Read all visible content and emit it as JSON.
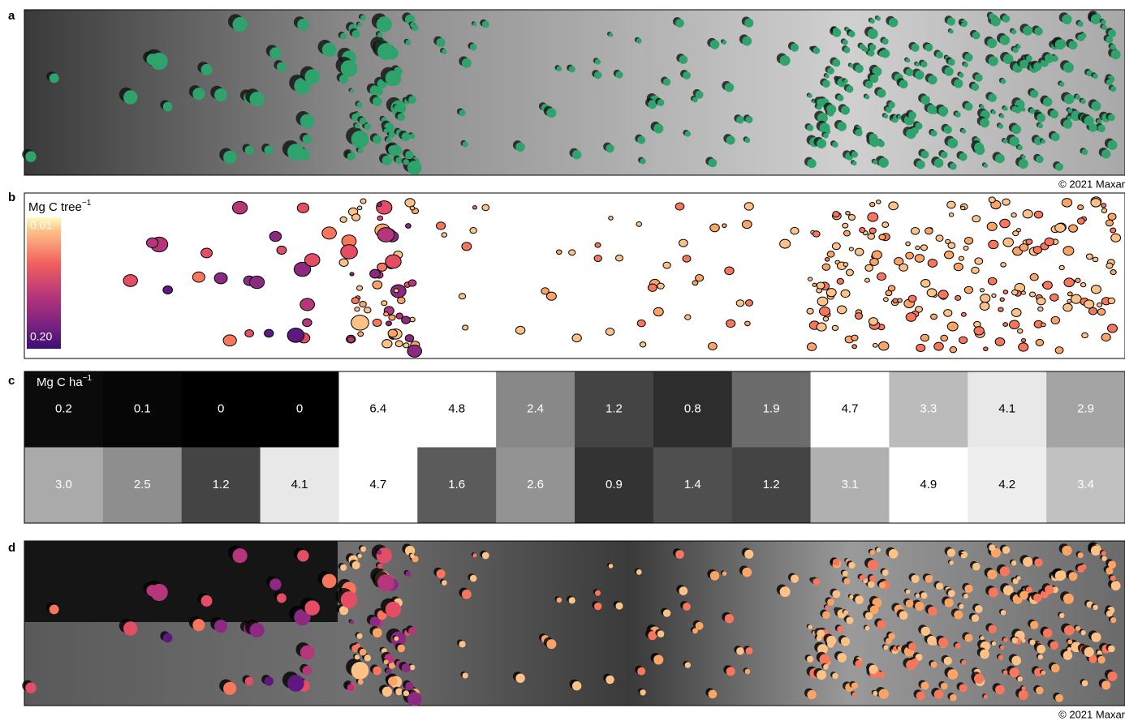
{
  "panel_a": {
    "label": "a",
    "credit": "© 2021 Maxar"
  },
  "panel_b": {
    "label": "b",
    "colorbar": {
      "unit": "Mg C tree",
      "exponent": "−1",
      "top": "0.01",
      "bottom": "0.20"
    }
  },
  "panel_c": {
    "label": "c",
    "unit": "Mg C ha",
    "exponent": "−1",
    "rows": [
      [
        "0.2",
        "0.1",
        "0",
        "0",
        "6.4",
        "4.8",
        "2.4",
        "1.2",
        "0.8",
        "1.9",
        "4.7",
        "3.3",
        "4.1",
        "2.9"
      ],
      [
        "3.0",
        "2.5",
        "1.2",
        "4.1",
        "4.7",
        "1.6",
        "2.6",
        "0.9",
        "1.4",
        "1.2",
        "3.1",
        "4.9",
        "4.2",
        "3.4"
      ]
    ]
  },
  "panel_d": {
    "label": "d",
    "credit": "© 2021 Maxar"
  }
}
